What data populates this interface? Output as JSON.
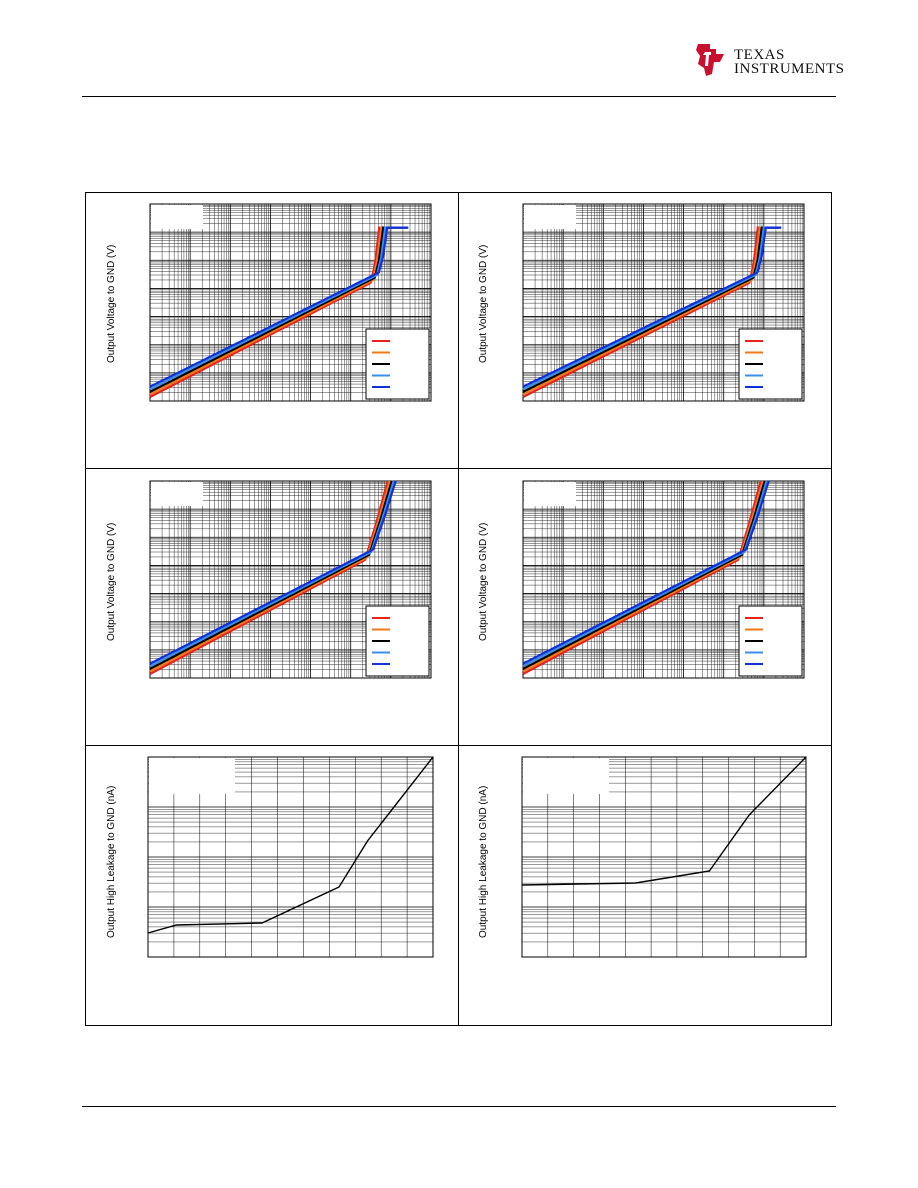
{
  "header": {
    "brand_line1": "Texas",
    "brand_line2": "Instruments",
    "logo_icon": "ti-logo-icon"
  },
  "colors": {
    "series": [
      "#e8231c",
      "#f07a1a",
      "#000000",
      "#3a8ee8",
      "#1030d8"
    ]
  },
  "figures": [
    {
      "ylabel": "Output Voltage to GND (V)"
    },
    {
      "ylabel": "Output Voltage to GND (V)"
    },
    {
      "ylabel": "Output Voltage to GND (V)"
    },
    {
      "ylabel": "Output Voltage to GND (V)"
    },
    {
      "ylabel": "Output High Leakage to GND (nA)"
    },
    {
      "ylabel": "Output High Leakage to GND (nA)"
    }
  ],
  "chart_data": [
    {
      "type": "line",
      "yscale": "log",
      "xscale": "log",
      "grid": true,
      "legend": "bottom-right",
      "series_count": 5,
      "shape": "rising then sharp knee then flat",
      "knee_x": 0.8,
      "flat_x": 0.83
    },
    {
      "type": "line",
      "yscale": "log",
      "xscale": "log",
      "grid": true,
      "legend": "bottom-right",
      "series_count": 5,
      "shape": "rising then sharp knee then flat",
      "knee_x": 0.82,
      "flat_x": 0.85
    },
    {
      "type": "line",
      "yscale": "log",
      "xscale": "log",
      "grid": true,
      "legend": "bottom-right",
      "series_count": 5,
      "shape": "rising then steep rise",
      "knee_x": 0.78,
      "flat_x": 0.86
    },
    {
      "type": "line",
      "yscale": "log",
      "xscale": "log",
      "grid": true,
      "legend": "bottom-right",
      "series_count": 5,
      "shape": "rising then steep rise",
      "knee_x": 0.78,
      "flat_x": 0.86
    },
    {
      "type": "line",
      "yscale": "log",
      "grid": true,
      "legend": "top-left",
      "series_count": 1,
      "x": [
        0,
        0.1,
        0.4,
        0.67,
        0.77,
        1.0
      ],
      "y": [
        0.12,
        0.16,
        0.17,
        0.35,
        0.58,
        1.0
      ]
    },
    {
      "type": "line",
      "yscale": "log",
      "grid": true,
      "legend": "top-left",
      "series_count": 1,
      "x": [
        0,
        0.4,
        0.66,
        0.8,
        1.0
      ],
      "y": [
        0.36,
        0.37,
        0.43,
        0.71,
        1.0
      ]
    }
  ]
}
